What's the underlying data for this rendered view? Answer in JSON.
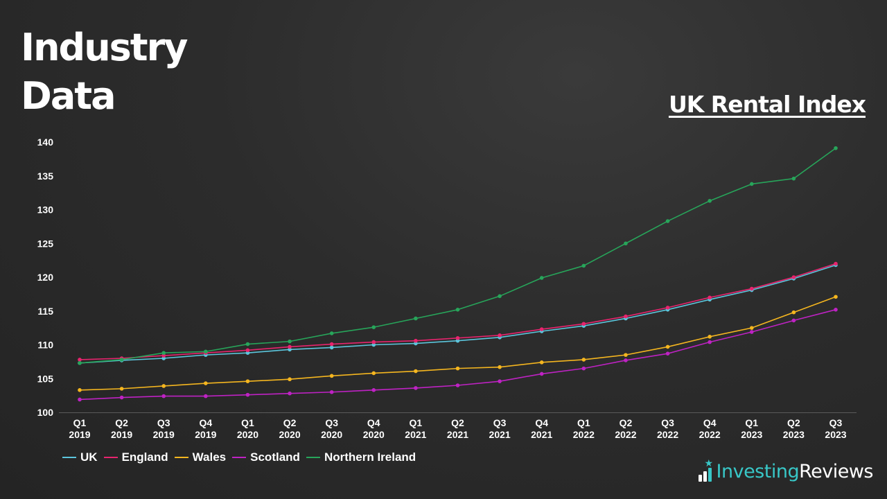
{
  "header": {
    "title_line1": "Industry",
    "title_line2": "Data",
    "subtitle": "UK Rental Index"
  },
  "brand": {
    "name_part1": "Investing",
    "name_part2": "Reviews",
    "icon": "bar-chart-star-icon",
    "accent_color": "#38c7c7"
  },
  "chart_data": {
    "type": "line",
    "title": "UK Rental Index",
    "xlabel": "",
    "ylabel": "",
    "ylim": [
      100,
      140
    ],
    "yticks": [
      100,
      105,
      110,
      115,
      120,
      125,
      130,
      135,
      140
    ],
    "grid": false,
    "legend_position": "bottom-left",
    "x": [
      [
        "Q1",
        "2019"
      ],
      [
        "Q2",
        "2019"
      ],
      [
        "Q3",
        "2019"
      ],
      [
        "Q4",
        "2019"
      ],
      [
        "Q1",
        "2020"
      ],
      [
        "Q2",
        "2020"
      ],
      [
        "Q3",
        "2020"
      ],
      [
        "Q4",
        "2020"
      ],
      [
        "Q1",
        "2021"
      ],
      [
        "Q2",
        "2021"
      ],
      [
        "Q3",
        "2021"
      ],
      [
        "Q4",
        "2021"
      ],
      [
        "Q1",
        "2022"
      ],
      [
        "Q2",
        "2022"
      ],
      [
        "Q3",
        "2022"
      ],
      [
        "Q4",
        "2022"
      ],
      [
        "Q1",
        "2023"
      ],
      [
        "Q2",
        "2023"
      ],
      [
        "Q3",
        "2023"
      ]
    ],
    "series": [
      {
        "name": "UK",
        "color": "#5cc6dd",
        "values": [
          107.3,
          107.7,
          108.0,
          108.5,
          108.8,
          109.3,
          109.6,
          110.0,
          110.2,
          110.6,
          111.1,
          112.0,
          112.8,
          113.9,
          115.2,
          116.7,
          118.1,
          119.8,
          121.8
        ]
      },
      {
        "name": "England",
        "color": "#e8246e",
        "values": [
          107.8,
          108.0,
          108.4,
          108.8,
          109.2,
          109.7,
          110.1,
          110.4,
          110.6,
          111.0,
          111.4,
          112.3,
          113.1,
          114.2,
          115.5,
          117.0,
          118.3,
          120.0,
          122.0
        ]
      },
      {
        "name": "Wales",
        "color": "#f5b61f",
        "values": [
          103.3,
          103.5,
          103.9,
          104.3,
          104.6,
          104.9,
          105.4,
          105.8,
          106.1,
          106.5,
          106.7,
          107.4,
          107.8,
          108.5,
          109.7,
          111.2,
          112.5,
          114.8,
          117.1
        ]
      },
      {
        "name": "Scotland",
        "color": "#bf22c4",
        "values": [
          101.9,
          102.2,
          102.4,
          102.4,
          102.6,
          102.8,
          103.0,
          103.3,
          103.6,
          104.0,
          104.6,
          105.7,
          106.5,
          107.7,
          108.7,
          110.4,
          111.9,
          113.6,
          115.2
        ]
      },
      {
        "name": "Northern Ireland",
        "color": "#27a55a",
        "values": [
          107.3,
          107.8,
          108.8,
          109.0,
          110.1,
          110.5,
          111.7,
          112.6,
          113.9,
          115.2,
          117.2,
          119.9,
          121.7,
          125.0,
          128.3,
          131.3,
          133.8,
          134.6,
          139.1
        ]
      }
    ]
  }
}
